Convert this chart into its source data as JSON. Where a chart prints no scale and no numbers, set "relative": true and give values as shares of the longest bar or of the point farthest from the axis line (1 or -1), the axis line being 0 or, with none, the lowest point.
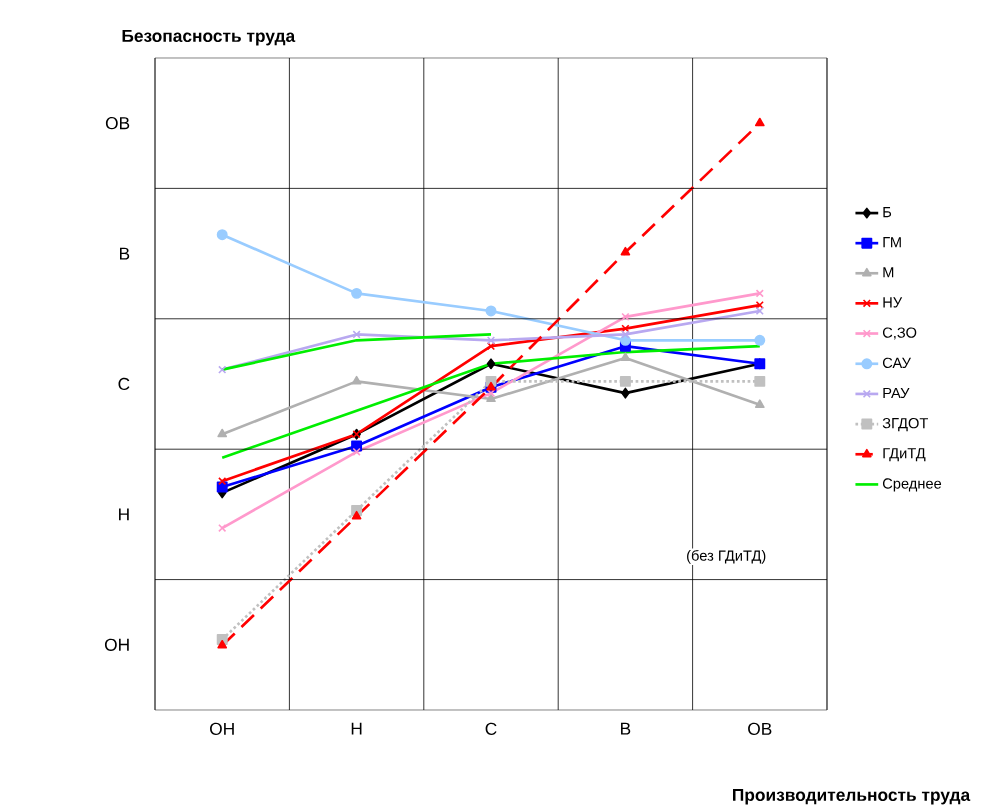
{
  "chart_data": {
    "type": "line",
    "xlabel": "Производительность труда",
    "ylabel": "Безопасность труда",
    "annotations": [
      "ОН",
      "Н",
      "С",
      "В",
      "ОВ",
      "(без ГДиТД)"
    ],
    "categories": [
      "ОН",
      "Н",
      "С",
      "В",
      "ОВ"
    ],
    "relative": true,
    "grid": true,
    "legend": "right",
    "series": [
      {
        "name": "Б",
        "color": "#000000",
        "marker": "diamond",
        "values": [
          0.37,
          0.47,
          0.59,
          0.54,
          0.59
        ]
      },
      {
        "name": "ГМ",
        "color": "#0000ff",
        "marker": "square",
        "values": [
          0.38,
          0.45,
          0.55,
          0.62,
          0.59
        ]
      },
      {
        "name": "М",
        "color": "#b0b0b0",
        "marker": "triangle",
        "values": [
          0.47,
          0.56,
          0.53,
          0.6,
          0.52
        ]
      },
      {
        "name": "НУ",
        "color": "#ff0000",
        "marker": "cross",
        "values": [
          0.39,
          0.47,
          0.62,
          0.65,
          0.69
        ]
      },
      {
        "name": "С,ЗО",
        "color": "#ff99cc",
        "marker": "cross",
        "values": [
          0.31,
          0.44,
          0.54,
          0.67,
          0.71
        ]
      },
      {
        "name": "САУ",
        "color": "#99ccff",
        "marker": "circle",
        "values": [
          0.81,
          0.71,
          0.68,
          0.63,
          0.63
        ]
      },
      {
        "name": "РАУ",
        "color": "#b8a8f0",
        "marker": "cross",
        "values": [
          0.58,
          0.64,
          0.63,
          0.64,
          0.68
        ]
      },
      {
        "name": "ЗГДОТ",
        "color": "#c0c0c0",
        "marker": "square",
        "line_style": "dotted",
        "values": [
          0.12,
          0.34,
          0.56,
          0.56,
          0.56
        ]
      },
      {
        "name": "ГДиТД",
        "color": "#ff0000",
        "marker": "triangle",
        "line_style": "dashed",
        "values": [
          0.11,
          0.33,
          0.55,
          0.78,
          1
        ]
      },
      {
        "name": "Среднее",
        "color": "#00ee00",
        "marker": "none",
        "values": [
          0.43,
          0.51,
          0.59,
          0.61,
          0.62
        ]
      },
      {
        "color": "#00ee00",
        "marker": "none",
        "values": [
          0.58,
          0.63,
          0.64,
          null,
          null
        ]
      }
    ]
  }
}
